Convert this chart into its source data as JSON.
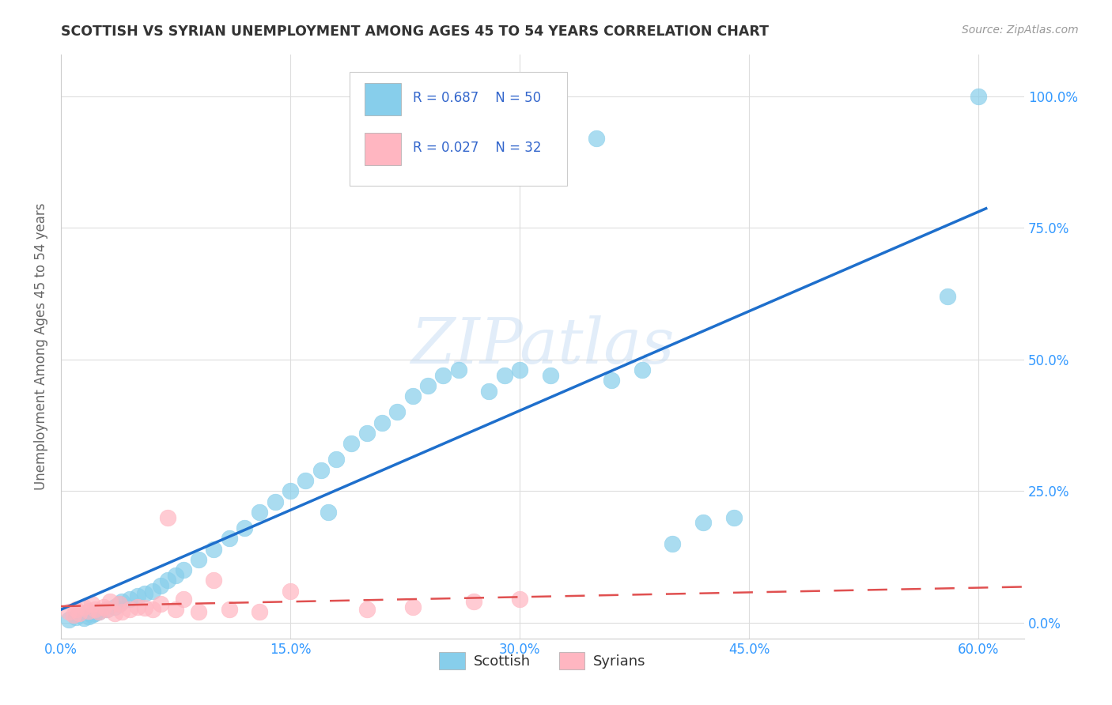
{
  "title": "SCOTTISH VS SYRIAN UNEMPLOYMENT AMONG AGES 45 TO 54 YEARS CORRELATION CHART",
  "source": "Source: ZipAtlas.com",
  "ylabel": "Unemployment Among Ages 45 to 54 years",
  "xlim": [
    0.0,
    0.63
  ],
  "ylim": [
    -0.03,
    1.08
  ],
  "xticks": [
    0.0,
    0.15,
    0.3,
    0.45,
    0.6
  ],
  "xtick_labels": [
    "0.0%",
    "15.0%",
    "30.0%",
    "45.0%",
    "60.0%"
  ],
  "yticks": [
    0.0,
    0.25,
    0.5,
    0.75,
    1.0
  ],
  "ytick_labels": [
    "0.0%",
    "25.0%",
    "50.0%",
    "75.0%",
    "100.0%"
  ],
  "watermark": "ZIPatlas",
  "legend_R_scottish": "R = 0.687",
  "legend_N_scottish": "N = 50",
  "legend_R_syrians": "R = 0.027",
  "legend_N_syrians": "N = 32",
  "scottish_color": "#87CEEB",
  "syrian_color": "#FFB6C1",
  "scottish_line_color": "#1E6FCC",
  "syrian_line_color": "#E05050",
  "background_color": "#FFFFFF",
  "scottish_x": [
    0.005,
    0.01,
    0.015,
    0.018,
    0.02,
    0.022,
    0.025,
    0.03,
    0.035,
    0.038,
    0.04,
    0.045,
    0.05,
    0.055,
    0.06,
    0.065,
    0.07,
    0.075,
    0.08,
    0.09,
    0.1,
    0.11,
    0.12,
    0.13,
    0.14,
    0.15,
    0.16,
    0.17,
    0.175,
    0.18,
    0.19,
    0.2,
    0.21,
    0.22,
    0.23,
    0.24,
    0.25,
    0.26,
    0.28,
    0.29,
    0.3,
    0.32,
    0.35,
    0.36,
    0.38,
    0.4,
    0.42,
    0.44,
    0.58,
    0.6
  ],
  "scottish_y": [
    0.005,
    0.01,
    0.008,
    0.012,
    0.015,
    0.018,
    0.02,
    0.025,
    0.03,
    0.035,
    0.04,
    0.045,
    0.05,
    0.055,
    0.06,
    0.07,
    0.08,
    0.09,
    0.1,
    0.12,
    0.14,
    0.16,
    0.18,
    0.21,
    0.23,
    0.25,
    0.27,
    0.29,
    0.21,
    0.31,
    0.34,
    0.36,
    0.38,
    0.4,
    0.43,
    0.45,
    0.47,
    0.48,
    0.44,
    0.47,
    0.48,
    0.47,
    0.92,
    0.46,
    0.48,
    0.15,
    0.19,
    0.2,
    0.62,
    1.0
  ],
  "syrian_x": [
    0.005,
    0.008,
    0.01,
    0.012,
    0.015,
    0.018,
    0.02,
    0.022,
    0.025,
    0.028,
    0.03,
    0.032,
    0.035,
    0.038,
    0.04,
    0.045,
    0.05,
    0.055,
    0.06,
    0.065,
    0.07,
    0.075,
    0.08,
    0.09,
    0.1,
    0.11,
    0.13,
    0.15,
    0.2,
    0.23,
    0.27,
    0.3
  ],
  "syrian_y": [
    0.02,
    0.015,
    0.025,
    0.018,
    0.03,
    0.022,
    0.035,
    0.025,
    0.02,
    0.03,
    0.025,
    0.04,
    0.018,
    0.035,
    0.02,
    0.025,
    0.03,
    0.028,
    0.025,
    0.035,
    0.2,
    0.025,
    0.045,
    0.02,
    0.08,
    0.025,
    0.02,
    0.06,
    0.025,
    0.03,
    0.04,
    0.045
  ]
}
